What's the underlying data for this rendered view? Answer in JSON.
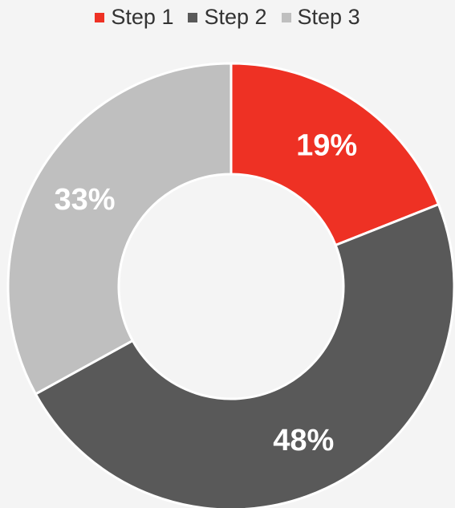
{
  "chart_data": {
    "type": "pie",
    "variant": "donut",
    "title": "",
    "legend_position": "top",
    "categories": [
      "Step 1",
      "Step 2",
      "Step 3"
    ],
    "values": [
      19,
      48,
      33
    ],
    "labels": [
      "19%",
      "48%",
      "33%"
    ],
    "colors": [
      "#ee3124",
      "#595959",
      "#bfbfbf"
    ],
    "start_angle": "12 o'clock, clockwise"
  }
}
